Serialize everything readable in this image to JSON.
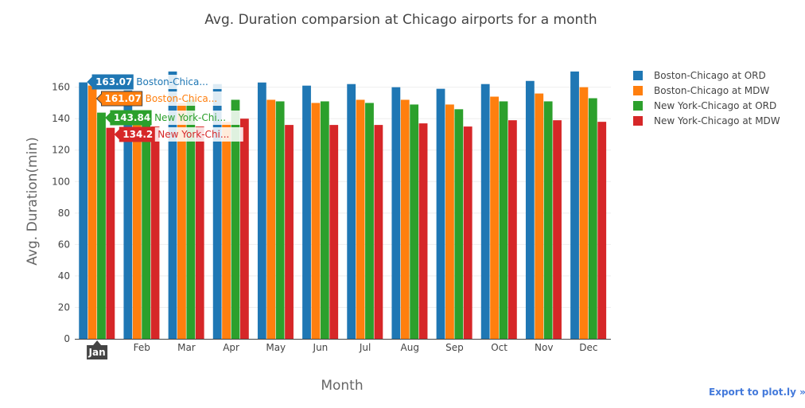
{
  "chart_data": {
    "type": "bar",
    "title": "Avg. Duration comparsion at Chicago airports for a month",
    "xlabel": "Month",
    "ylabel": "Avg. Duration(min)",
    "ylim": [
      0,
      175
    ],
    "yticks": [
      0,
      20,
      40,
      60,
      80,
      100,
      120,
      140,
      160
    ],
    "grid": true,
    "legend_position": "top-right",
    "categories": [
      "Jan",
      "Feb",
      "Mar",
      "Apr",
      "May",
      "Jun",
      "Jul",
      "Aug",
      "Sep",
      "Oct",
      "Nov",
      "Dec"
    ],
    "series": [
      {
        "name": "Boston-Chicago at ORD",
        "color": "#1f77b4",
        "values": [
          163.07,
          158,
          170,
          162,
          163,
          161,
          162,
          160,
          159,
          162,
          164,
          170
        ]
      },
      {
        "name": "Boston-Chicago at MDW",
        "color": "#ff7f0e",
        "values": [
          161.07,
          145,
          150,
          138,
          152,
          150,
          152,
          152,
          149,
          154,
          156,
          160
        ]
      },
      {
        "name": "New York-Chicago at ORD",
        "color": "#2ca02c",
        "values": [
          143.84,
          140,
          152,
          152,
          151,
          151,
          150,
          149,
          146,
          151,
          151,
          153
        ]
      },
      {
        "name": "New York-Chicago at MDW",
        "color": "#d62728",
        "values": [
          134.2,
          135,
          135,
          140,
          136,
          136,
          136,
          137,
          135,
          139,
          139,
          138
        ]
      }
    ],
    "hover": {
      "category": "Jan",
      "labels": [
        {
          "value": "163.07",
          "name": "Boston-Chica..."
        },
        {
          "value": "161.07",
          "name": "Boston-Chica..."
        },
        {
          "value": "143.84",
          "name": "New York-Chi..."
        },
        {
          "value": "134.2",
          "name": "New York-Chi..."
        }
      ]
    }
  },
  "toolbar": {
    "export_label": "Export to plot.ly »"
  }
}
